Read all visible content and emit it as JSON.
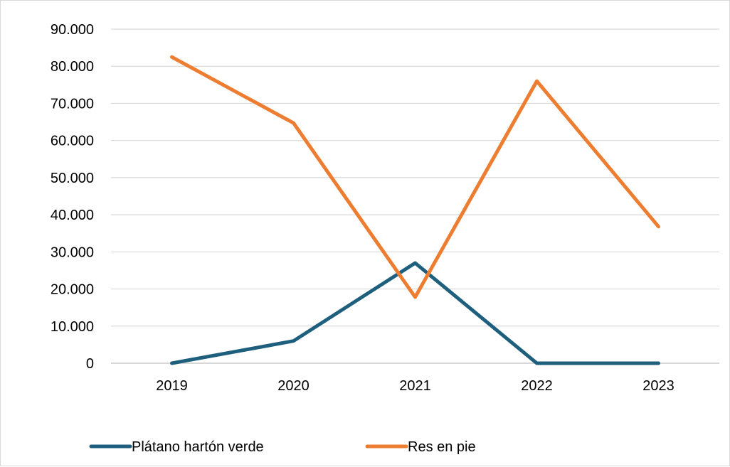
{
  "chart_data": {
    "type": "line",
    "categories": [
      "2019",
      "2020",
      "2021",
      "2022",
      "2023"
    ],
    "series": [
      {
        "name": "Plátano hartón verde",
        "color": "#1f5f7e",
        "values": [
          0,
          6000,
          27000,
          0,
          0
        ]
      },
      {
        "name": "Res en pie",
        "color": "#ed7d31",
        "values": [
          82500,
          64700,
          17800,
          76000,
          36800
        ]
      }
    ],
    "y_ticks": [
      "0",
      "10.000",
      "20.000",
      "30.000",
      "40.000",
      "50.000",
      "60.000",
      "70.000",
      "80.000",
      "90.000"
    ],
    "ylim": [
      0,
      90000
    ],
    "y_tick_step": 10000,
    "grid": true,
    "legend_position": "bottom",
    "title": "",
    "xlabel": "",
    "ylabel": ""
  }
}
